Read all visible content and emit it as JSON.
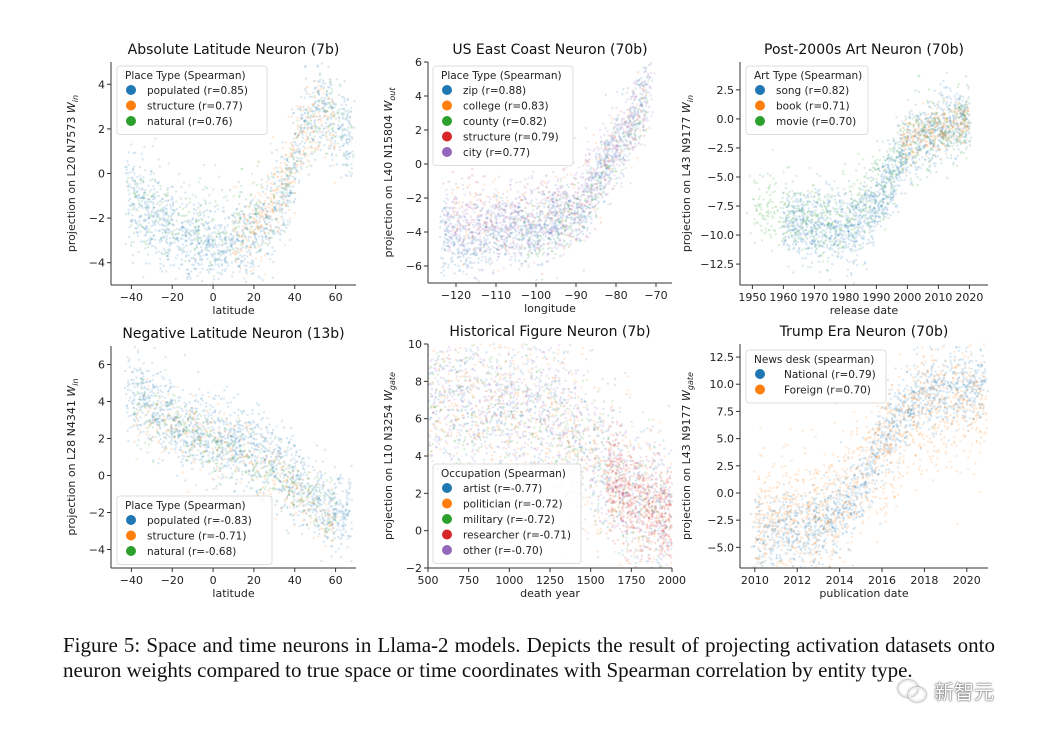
{
  "colors": {
    "blue": "#1f77b4",
    "orange": "#ff7f0e",
    "green": "#2ca02c",
    "red": "#d62728",
    "purple": "#9467bd"
  },
  "chart_data": [
    {
      "type": "scatter",
      "title": "Absolute Latitude Neuron (7b)",
      "xlabel": "latitude",
      "ylabel": {
        "text": "projection on L20 N7573 ",
        "var": "W",
        "sub": "in"
      },
      "xlim": [
        -50,
        70
      ],
      "ylim": [
        -5,
        5
      ],
      "xticks": [
        -40,
        -20,
        0,
        20,
        40,
        60
      ],
      "xtick_labels": [
        "−40",
        "−20",
        "0",
        "20",
        "40",
        "60"
      ],
      "yticks": [
        -4,
        -2,
        0,
        2,
        4
      ],
      "ytick_labels": [
        "−4",
        "−2",
        "0",
        "2",
        "4"
      ],
      "legend": {
        "title": "Place Type (Spearman)",
        "placement": "upper-left"
      },
      "series": [
        {
          "name": "populated  (r=0.85)",
          "color": "#1f77b4",
          "n": 1500,
          "sd": 1.0,
          "trend": [
            [
              -42,
              -0.8
            ],
            [
              -35,
              -1.6
            ],
            [
              -25,
              -2.3
            ],
            [
              -10,
              -2.9
            ],
            [
              0,
              -3.1
            ],
            [
              15,
              -3.0
            ],
            [
              25,
              -2.4
            ],
            [
              35,
              -1.0
            ],
            [
              45,
              2.0
            ],
            [
              53,
              3.0
            ],
            [
              68,
              1.6
            ]
          ]
        },
        {
          "name": "structure (r=0.77)",
          "color": "#ff7f0e",
          "n": 350,
          "sd": 0.9,
          "trend": [
            [
              10,
              -2.8
            ],
            [
              20,
              -2.6
            ],
            [
              35,
              -0.5
            ],
            [
              42,
              1.5
            ],
            [
              52,
              2.6
            ],
            [
              60,
              2.0
            ]
          ]
        },
        {
          "name": "natural  (r=0.76)",
          "color": "#2ca02c",
          "n": 350,
          "sd": 1.0,
          "trend": [
            [
              -40,
              -1.2
            ],
            [
              0,
              -2.8
            ],
            [
              30,
              -1.5
            ],
            [
              42,
              1.6
            ],
            [
              55,
              2.6
            ],
            [
              68,
              1.8
            ]
          ]
        }
      ]
    },
    {
      "type": "scatter",
      "title": "US East Coast Neuron (70b)",
      "xlabel": "longitude",
      "ylabel": {
        "text": "projection on L40 N15804 ",
        "var": "W",
        "sub": "out"
      },
      "xlim": [
        -127,
        -66
      ],
      "ylim": [
        -7,
        6
      ],
      "xticks": [
        -120,
        -110,
        -100,
        -90,
        -80,
        -70
      ],
      "xtick_labels": [
        "−120",
        "−110",
        "−100",
        "−90",
        "−80",
        "−70"
      ],
      "yticks": [
        -6,
        -4,
        -2,
        0,
        2,
        4,
        6
      ],
      "ytick_labels": [
        "−6",
        "−4",
        "−2",
        "0",
        "2",
        "4",
        "6"
      ],
      "legend": {
        "title": "Place Type (Spearman)",
        "placement": "upper-left"
      },
      "series": [
        {
          "name": "zip (r=0.88)",
          "color": "#1f77b4",
          "n": 1000,
          "sd": 1.0,
          "trend": [
            [
              -124,
              -4
            ],
            [
              -118,
              -5.2
            ],
            [
              -110,
              -3.8
            ],
            [
              -100,
              -4
            ],
            [
              -95,
              -3.5
            ],
            [
              -88,
              -3
            ],
            [
              -85,
              -1
            ],
            [
              -80,
              1
            ],
            [
              -75,
              3
            ],
            [
              -72,
              5
            ]
          ]
        },
        {
          "name": "college (r=0.83)",
          "color": "#ff7f0e",
          "n": 150,
          "sd": 1.2,
          "trend": [
            [
              -122,
              -3
            ],
            [
              -100,
              -3.5
            ],
            [
              -88,
              -2
            ],
            [
              -80,
              1
            ],
            [
              -72,
              4
            ]
          ]
        },
        {
          "name": "county (r=0.82)",
          "color": "#2ca02c",
          "n": 200,
          "sd": 1.0,
          "trend": [
            [
              -104,
              -4.5
            ],
            [
              -98,
              -4.2
            ],
            [
              -90,
              -3
            ],
            [
              -80,
              0.5
            ],
            [
              -72,
              3.5
            ]
          ]
        },
        {
          "name": "structure (r=0.79)",
          "color": "#d62728",
          "n": 150,
          "sd": 1.3,
          "trend": [
            [
              -122,
              -2.5
            ],
            [
              -110,
              -3
            ],
            [
              -95,
              -3
            ],
            [
              -85,
              -0.5
            ],
            [
              -72,
              3.5
            ]
          ]
        },
        {
          "name": "city (r=0.77)",
          "color": "#9467bd",
          "n": 1100,
          "sd": 1.2,
          "trend": [
            [
              -123,
              -3
            ],
            [
              -118,
              -3.5
            ],
            [
              -105,
              -3.5
            ],
            [
              -97,
              -3.2
            ],
            [
              -90,
              -2.5
            ],
            [
              -85,
              -0.5
            ],
            [
              -80,
              1
            ],
            [
              -75,
              3
            ],
            [
              -71,
              5
            ]
          ]
        }
      ]
    },
    {
      "type": "scatter",
      "title": "Post-2000s Art Neuron (70b)",
      "xlabel": "release date",
      "ylabel": {
        "text": "projection on L43 N9177 ",
        "var": "W",
        "sub": "in"
      },
      "xlim": [
        1946,
        2026
      ],
      "ylim": [
        -14.3,
        4.9
      ],
      "xticks": [
        1950,
        1960,
        1970,
        1980,
        1990,
        2000,
        2010,
        2020
      ],
      "xtick_labels": [
        "1950",
        "1960",
        "1970",
        "1980",
        "1990",
        "2000",
        "2010",
        "2020"
      ],
      "yticks": [
        -12.5,
        -10,
        -7.5,
        -5,
        -2.5,
        0,
        2.5
      ],
      "ytick_labels": [
        "−12.5",
        "−10.0",
        "−7.5",
        "−5.0",
        "−2.5",
        "0.0",
        "2.5"
      ],
      "legend": {
        "title": "Art Type (Spearman)",
        "placement": "upper-left"
      },
      "series": [
        {
          "name": "song (r=0.82)",
          "color": "#1f77b4",
          "n": 1600,
          "sd": 1.5,
          "trend": [
            [
              1960,
              -8.8
            ],
            [
              1970,
              -9.3
            ],
            [
              1980,
              -9.5
            ],
            [
              1990,
              -7.5
            ],
            [
              1995,
              -5
            ],
            [
              2000,
              -2.5
            ],
            [
              2010,
              -0.8
            ],
            [
              2020,
              0
            ]
          ]
        },
        {
          "name": "book (r=0.71)",
          "color": "#ff7f0e",
          "n": 300,
          "sd": 1.0,
          "trend": [
            [
              1998,
              -2.5
            ],
            [
              2005,
              -1.2
            ],
            [
              2012,
              -0.6
            ],
            [
              2020,
              -0.3
            ]
          ]
        },
        {
          "name": "movie (r=0.70)",
          "color": "#2ca02c",
          "n": 700,
          "sd": 1.8,
          "trend": [
            [
              1950,
              -7.5
            ],
            [
              1965,
              -8.5
            ],
            [
              1980,
              -8.5
            ],
            [
              1992,
              -5.5
            ],
            [
              2000,
              -2.5
            ],
            [
              2010,
              -1
            ],
            [
              2020,
              -0.5
            ]
          ]
        }
      ]
    },
    {
      "type": "scatter",
      "title": "Negative Latitude Neuron (13b)",
      "xlabel": "latitude",
      "ylabel": {
        "text": "projection on L28 N4341 ",
        "var": "W",
        "sub": "in"
      },
      "xlim": [
        -50,
        70
      ],
      "ylim": [
        -5,
        7
      ],
      "xticks": [
        -40,
        -20,
        0,
        20,
        40,
        60
      ],
      "xtick_labels": [
        "−40",
        "−20",
        "0",
        "20",
        "40",
        "60"
      ],
      "yticks": [
        -4,
        -2,
        0,
        2,
        4,
        6
      ],
      "ytick_labels": [
        "−4",
        "−2",
        "0",
        "2",
        "4",
        "6"
      ],
      "legend": {
        "title": "Place Type (Spearman)",
        "placement": "lower-left"
      },
      "series": [
        {
          "name": "populated  (r=-0.83)",
          "color": "#1f77b4",
          "n": 1500,
          "sd": 1.1,
          "trend": [
            [
              -42,
              4.6
            ],
            [
              -30,
              4.0
            ],
            [
              -15,
              2.6
            ],
            [
              0,
              2.0
            ],
            [
              20,
              1.6
            ],
            [
              35,
              0.2
            ],
            [
              45,
              -0.8
            ],
            [
              55,
              -2.0
            ],
            [
              68,
              -2.2
            ]
          ]
        },
        {
          "name": "structure (r=-0.71)",
          "color": "#ff7f0e",
          "n": 350,
          "sd": 1.0,
          "trend": [
            [
              -38,
              3.5
            ],
            [
              15,
              1.2
            ],
            [
              40,
              -0.6
            ],
            [
              52,
              -2
            ],
            [
              60,
              -2.5
            ]
          ]
        },
        {
          "name": "natural  (r=-0.68)",
          "color": "#2ca02c",
          "n": 350,
          "sd": 1.0,
          "trend": [
            [
              -38,
              4
            ],
            [
              0,
              1.5
            ],
            [
              35,
              -0.3
            ],
            [
              46,
              -1
            ],
            [
              60,
              -2
            ]
          ]
        }
      ]
    },
    {
      "type": "scatter",
      "title": "Historical Figure Neuron (7b)",
      "xlabel": "death year",
      "ylabel": {
        "text": "projection on L10 N3254 ",
        "var": "W",
        "sub": "gate"
      },
      "xlim": [
        500,
        2000
      ],
      "ylim": [
        -2,
        10
      ],
      "xticks": [
        500,
        750,
        1000,
        1250,
        1500,
        1750,
        2000
      ],
      "xtick_labels": [
        "500",
        "750",
        "1000",
        "1250",
        "1500",
        "1750",
        "2000"
      ],
      "yticks": [
        -2,
        0,
        2,
        4,
        6,
        8,
        10
      ],
      "ytick_labels": [
        "−2",
        "0",
        "2",
        "4",
        "6",
        "8",
        "10"
      ],
      "legend": {
        "title": "Occupation (Spearman)",
        "placement": "lower-left"
      },
      "series": [
        {
          "name": "artist (r=-0.77)",
          "color": "#1f77b4",
          "n": 700,
          "sd": 2.0,
          "trend": [
            [
              500,
              7
            ],
            [
              1000,
              7
            ],
            [
              1250,
              6.5
            ],
            [
              1500,
              4.5
            ],
            [
              1750,
              2
            ],
            [
              2000,
              0.8
            ]
          ]
        },
        {
          "name": "politician (r=-0.72)",
          "color": "#ff7f0e",
          "n": 700,
          "sd": 2.2,
          "trend": [
            [
              500,
              7
            ],
            [
              1000,
              6.8
            ],
            [
              1250,
              6
            ],
            [
              1500,
              4.2
            ],
            [
              1750,
              2
            ],
            [
              2000,
              0.8
            ]
          ]
        },
        {
          "name": "military (r=-0.72)",
          "color": "#2ca02c",
          "n": 400,
          "sd": 2.0,
          "trend": [
            [
              500,
              6.5
            ],
            [
              1250,
              6
            ],
            [
              1500,
              4.2
            ],
            [
              1750,
              2
            ],
            [
              2000,
              0.8
            ]
          ]
        },
        {
          "name": "researcher (r=-0.71)",
          "color": "#d62728",
          "n": 600,
          "sd": 1.3,
          "trend": [
            [
              1600,
              3
            ],
            [
              1750,
              1.8
            ],
            [
              1900,
              0.9
            ],
            [
              2000,
              0.7
            ]
          ]
        },
        {
          "name": "other (r=-0.70)",
          "color": "#9467bd",
          "n": 900,
          "sd": 2.0,
          "trend": [
            [
              500,
              7
            ],
            [
              1000,
              7
            ],
            [
              1250,
              6.5
            ],
            [
              1500,
              4.5
            ],
            [
              1750,
              2
            ],
            [
              2000,
              0.8
            ]
          ]
        }
      ]
    },
    {
      "type": "scatter",
      "title": "Trump Era Neuron (70b)",
      "xlabel": "publication date",
      "ylabel": {
        "text": "projection on L43 N9177 ",
        "var": "W",
        "sub": "gate"
      },
      "xlim": [
        2009.3,
        2021.0
      ],
      "ylim": [
        -6.9,
        13.7
      ],
      "xticks": [
        2010,
        2012,
        2014,
        2016,
        2018,
        2020
      ],
      "xtick_labels": [
        "2010",
        "2012",
        "2014",
        "2016",
        "2018",
        "2020"
      ],
      "yticks": [
        -5,
        -2.5,
        0,
        2.5,
        5,
        7.5,
        10,
        12.5
      ],
      "ytick_labels": [
        "−5.0",
        "−2.5",
        "0.0",
        "2.5",
        "5.0",
        "7.5",
        "10.0",
        "12.5"
      ],
      "legend": {
        "title": "News desk (spearman)",
        "placement": "upper-left"
      },
      "series": [
        {
          "name": "National (r=0.79)",
          "color": "#1f77b4",
          "n": 1500,
          "sd": 1.8,
          "trend": [
            [
              2010,
              -4
            ],
            [
              2013,
              -3
            ],
            [
              2015,
              0
            ],
            [
              2016,
              4.5
            ],
            [
              2017,
              7.5
            ],
            [
              2018,
              9
            ],
            [
              2019,
              9.5
            ],
            [
              2020.9,
              10
            ]
          ]
        },
        {
          "name": "Foreign (r=0.70)",
          "color": "#ff7f0e",
          "n": 1300,
          "sd": 3.0,
          "trend": [
            [
              2010,
              -3
            ],
            [
              2012,
              -2.5
            ],
            [
              2014,
              -1
            ],
            [
              2015,
              1.5
            ],
            [
              2016,
              4
            ],
            [
              2017,
              6.5
            ],
            [
              2018,
              8
            ],
            [
              2020.9,
              8.5
            ]
          ]
        }
      ]
    }
  ],
  "caption": "Figure 5: Space and time neurons in Llama-2 models. Depicts the result of projecting activation datasets onto neuron weights compared to true space or time coordinates with Spearman correlation by entity type.",
  "watermark": "新智元"
}
